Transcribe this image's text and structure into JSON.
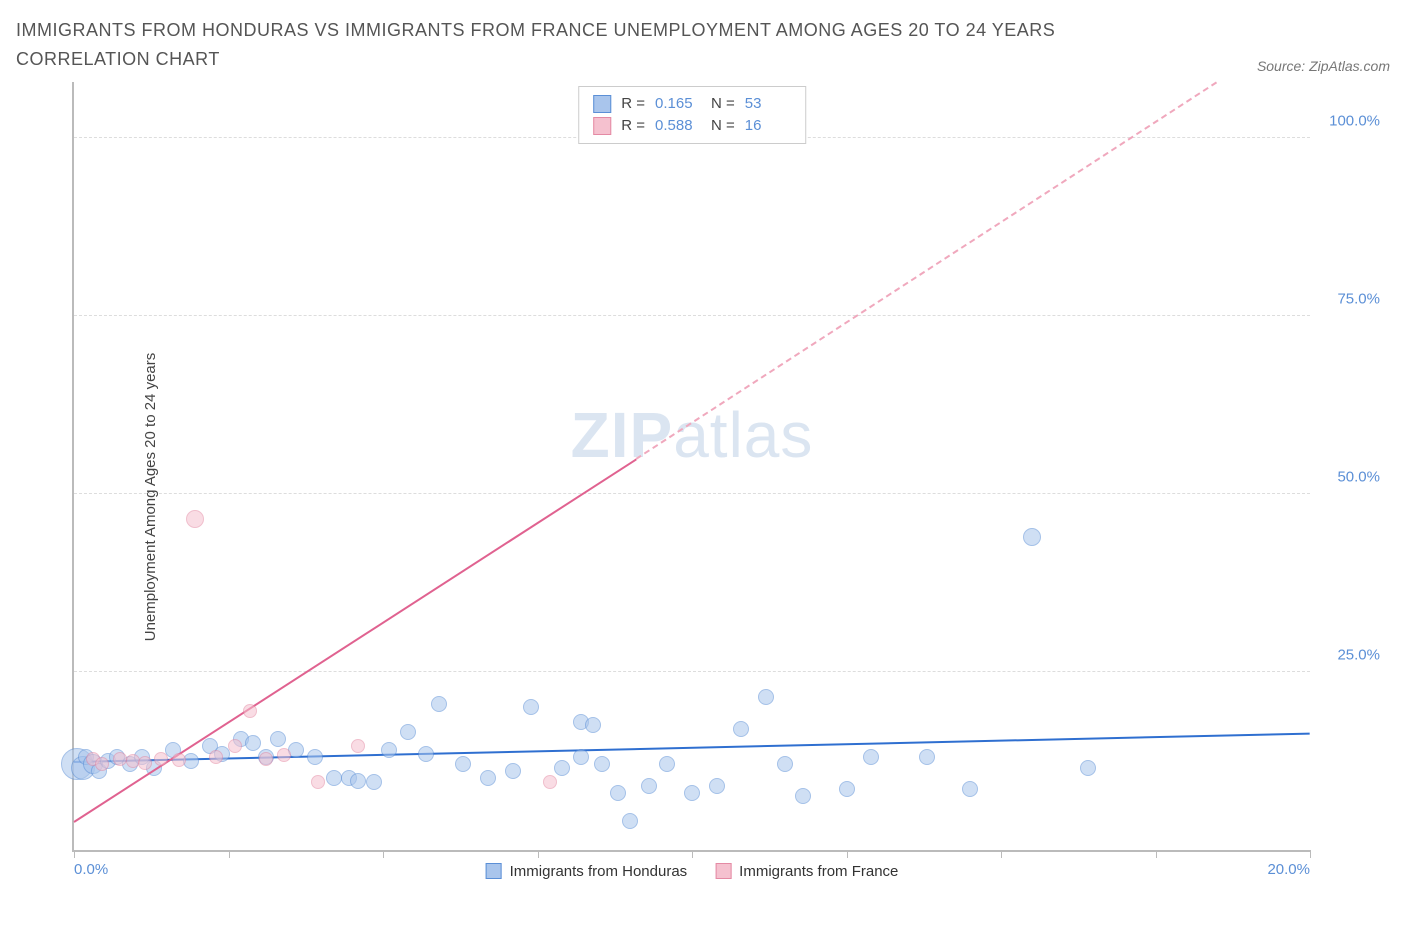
{
  "title": "IMMIGRANTS FROM HONDURAS VS IMMIGRANTS FROM FRANCE UNEMPLOYMENT AMONG AGES 20 TO 24 YEARS CORRELATION CHART",
  "source": "Source: ZipAtlas.com",
  "watermark_zip": "ZIP",
  "watermark_atlas": "atlas",
  "y_axis_label": "Unemployment Among Ages 20 to 24 years",
  "chart": {
    "type": "scatter",
    "xlim": [
      0,
      20
    ],
    "ylim": [
      0,
      108
    ],
    "x_ticks": [
      0,
      2.5,
      5,
      7.5,
      10,
      12.5,
      15,
      17.5,
      20
    ],
    "x_tick_labels": {
      "0": "0.0%",
      "20": "20.0%"
    },
    "y_ticks": [
      25,
      50,
      75,
      100
    ],
    "y_tick_labels": {
      "25": "25.0%",
      "50": "50.0%",
      "75": "75.0%",
      "100": "100.0%"
    },
    "grid_color": "#dddddd",
    "axis_color": "#bbbbbb",
    "background_color": "#ffffff",
    "series": [
      {
        "name": "Immigrants from Honduras",
        "legend_label": "Immigrants from Honduras",
        "color_fill": "#a9c5ec",
        "color_stroke": "#5b8fd6",
        "fill_opacity": 0.55,
        "R_label": "R =",
        "R": "0.165",
        "N_label": "N =",
        "N": "53",
        "trend": {
          "x1": 0,
          "y1": 12.5,
          "x2": 20,
          "y2": 16.5,
          "color": "#2f6fd0",
          "width": 2
        },
        "points": [
          {
            "x": 0.05,
            "y": 12.0,
            "r": 16
          },
          {
            "x": 0.15,
            "y": 11.5,
            "r": 12
          },
          {
            "x": 0.2,
            "y": 13.0,
            "r": 8
          },
          {
            "x": 0.3,
            "y": 12.0,
            "r": 10
          },
          {
            "x": 0.4,
            "y": 11.0,
            "r": 8
          },
          {
            "x": 0.55,
            "y": 12.5,
            "r": 8
          },
          {
            "x": 0.7,
            "y": 13.0,
            "r": 8
          },
          {
            "x": 0.9,
            "y": 12.0,
            "r": 8
          },
          {
            "x": 1.1,
            "y": 13.0,
            "r": 8
          },
          {
            "x": 1.3,
            "y": 11.5,
            "r": 8
          },
          {
            "x": 1.6,
            "y": 14.0,
            "r": 8
          },
          {
            "x": 1.9,
            "y": 12.5,
            "r": 8
          },
          {
            "x": 2.2,
            "y": 14.5,
            "r": 8
          },
          {
            "x": 2.4,
            "y": 13.5,
            "r": 8
          },
          {
            "x": 2.7,
            "y": 15.5,
            "r": 8
          },
          {
            "x": 2.9,
            "y": 15.0,
            "r": 8
          },
          {
            "x": 3.1,
            "y": 13.0,
            "r": 8
          },
          {
            "x": 3.3,
            "y": 15.5,
            "r": 8
          },
          {
            "x": 3.6,
            "y": 14.0,
            "r": 8
          },
          {
            "x": 3.9,
            "y": 13.0,
            "r": 8
          },
          {
            "x": 4.2,
            "y": 10.0,
            "r": 8
          },
          {
            "x": 4.45,
            "y": 10.0,
            "r": 8
          },
          {
            "x": 4.6,
            "y": 9.7,
            "r": 8
          },
          {
            "x": 4.85,
            "y": 9.5,
            "r": 8
          },
          {
            "x": 5.1,
            "y": 14.0,
            "r": 8
          },
          {
            "x": 5.4,
            "y": 16.5,
            "r": 8
          },
          {
            "x": 5.7,
            "y": 13.5,
            "r": 8
          },
          {
            "x": 5.9,
            "y": 20.5,
            "r": 8
          },
          {
            "x": 6.3,
            "y": 12.0,
            "r": 8
          },
          {
            "x": 6.7,
            "y": 10.0,
            "r": 8
          },
          {
            "x": 7.1,
            "y": 11.0,
            "r": 8
          },
          {
            "x": 7.4,
            "y": 20.0,
            "r": 8
          },
          {
            "x": 7.9,
            "y": 11.5,
            "r": 8
          },
          {
            "x": 8.2,
            "y": 13.0,
            "r": 8
          },
          {
            "x": 8.2,
            "y": 18.0,
            "r": 8
          },
          {
            "x": 8.4,
            "y": 17.5,
            "r": 8
          },
          {
            "x": 8.55,
            "y": 12.0,
            "r": 8
          },
          {
            "x": 8.8,
            "y": 8.0,
            "r": 8
          },
          {
            "x": 9.0,
            "y": 4.0,
            "r": 8
          },
          {
            "x": 9.3,
            "y": 9.0,
            "r": 8
          },
          {
            "x": 9.6,
            "y": 12.0,
            "r": 8
          },
          {
            "x": 10.0,
            "y": 8.0,
            "r": 8
          },
          {
            "x": 10.4,
            "y": 9.0,
            "r": 8
          },
          {
            "x": 10.8,
            "y": 17.0,
            "r": 8
          },
          {
            "x": 11.2,
            "y": 21.5,
            "r": 8
          },
          {
            "x": 11.5,
            "y": 12.0,
            "r": 8
          },
          {
            "x": 11.8,
            "y": 7.5,
            "r": 8
          },
          {
            "x": 12.5,
            "y": 8.5,
            "r": 8
          },
          {
            "x": 12.9,
            "y": 13.0,
            "r": 8
          },
          {
            "x": 13.8,
            "y": 13.0,
            "r": 8
          },
          {
            "x": 14.5,
            "y": 8.5,
            "r": 8
          },
          {
            "x": 15.5,
            "y": 44.0,
            "r": 9
          },
          {
            "x": 16.4,
            "y": 11.5,
            "r": 8
          }
        ]
      },
      {
        "name": "Immigrants from France",
        "legend_label": "Immigrants from France",
        "color_fill": "#f5c1cf",
        "color_stroke": "#e48aa4",
        "fill_opacity": 0.55,
        "R_label": "R =",
        "R": "0.588",
        "N_label": "N =",
        "N": "16",
        "trend": {
          "x1": 0,
          "y1": 4.0,
          "x2": 9.1,
          "y2": 55.0,
          "color": "#e06290",
          "width": 2
        },
        "trend_dash": {
          "x1": 9.1,
          "y1": 55.0,
          "x2": 18.5,
          "y2": 108.0,
          "color": "#f0a8bd"
        },
        "points": [
          {
            "x": 0.3,
            "y": 12.8,
            "r": 7
          },
          {
            "x": 0.45,
            "y": 12.0,
            "r": 7
          },
          {
            "x": 0.75,
            "y": 12.8,
            "r": 7
          },
          {
            "x": 0.95,
            "y": 12.5,
            "r": 7
          },
          {
            "x": 1.15,
            "y": 12.2,
            "r": 7
          },
          {
            "x": 1.4,
            "y": 12.7,
            "r": 7
          },
          {
            "x": 1.7,
            "y": 12.6,
            "r": 7
          },
          {
            "x": 1.95,
            "y": 46.5,
            "r": 9
          },
          {
            "x": 2.3,
            "y": 13.0,
            "r": 7
          },
          {
            "x": 2.6,
            "y": 14.5,
            "r": 7
          },
          {
            "x": 2.85,
            "y": 19.5,
            "r": 7
          },
          {
            "x": 3.1,
            "y": 12.8,
            "r": 7
          },
          {
            "x": 3.4,
            "y": 13.3,
            "r": 7
          },
          {
            "x": 3.95,
            "y": 9.5,
            "r": 7
          },
          {
            "x": 4.6,
            "y": 14.5,
            "r": 7
          },
          {
            "x": 7.7,
            "y": 9.5,
            "r": 7
          }
        ]
      }
    ]
  },
  "legend_top_labels": {
    "R": "R =",
    "N": "N ="
  },
  "legend_bottom": [
    {
      "label": "Immigrants from Honduras",
      "fill": "#a9c5ec",
      "stroke": "#5b8fd6"
    },
    {
      "label": "Immigrants from France",
      "fill": "#f5c1cf",
      "stroke": "#e48aa4"
    }
  ]
}
